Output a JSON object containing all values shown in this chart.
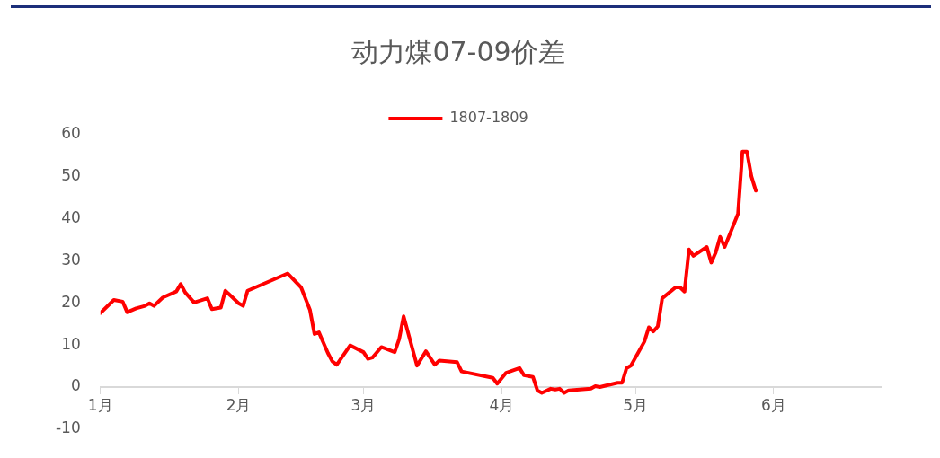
{
  "chart_data": {
    "type": "line",
    "title": "动力煤07-09价差",
    "legend": "top",
    "grid": false,
    "marker": "none",
    "line_style": "solid",
    "xlim": [
      "--01-01",
      "--06-25"
    ],
    "xticks": [
      {
        "value": "--01-01",
        "label": "1月"
      },
      {
        "value": "--02-01",
        "label": "2月"
      },
      {
        "value": "--03-01",
        "label": "3月"
      },
      {
        "value": "--04-01",
        "label": "4月"
      },
      {
        "value": "--05-01",
        "label": "5月"
      },
      {
        "value": "--06-01",
        "label": "6月"
      }
    ],
    "ylim": [
      -10,
      60
    ],
    "yticks": [
      -10,
      0,
      10,
      20,
      30,
      40,
      50,
      60
    ],
    "x": [
      "--01-01",
      "--01-04",
      "--01-06",
      "--01-07",
      "--01-09",
      "--01-11",
      "--01-12",
      "--01-13",
      "--01-15",
      "--01-18",
      "--01-19",
      "--01-20",
      "--01-22",
      "--01-25",
      "--01-26",
      "--01-28",
      "--01-29",
      "--02-01",
      "--02-02",
      "--02-03",
      "--02-12",
      "--02-15",
      "--02-17",
      "--02-18",
      "--02-19",
      "--02-21",
      "--02-22",
      "--02-23",
      "--02-26",
      "--03-01",
      "--03-02",
      "--03-03",
      "--03-05",
      "--03-08",
      "--03-09",
      "--03-10",
      "--03-13",
      "--03-15",
      "--03-17",
      "--03-18",
      "--03-22",
      "--03-23",
      "--03-30",
      "--03-31",
      "--04-02",
      "--04-05",
      "--04-06",
      "--04-08",
      "--04-09",
      "--04-10",
      "--04-12",
      "--04-13",
      "--04-14",
      "--04-15",
      "--04-16",
      "--04-21",
      "--04-22",
      "--04-23",
      "--04-27",
      "--04-28",
      "--04-29",
      "--04-30",
      "--05-03",
      "--05-04",
      "--05-05",
      "--05-06",
      "--05-07",
      "--05-10",
      "--05-11",
      "--05-12",
      "--05-13",
      "--05-14",
      "--05-17",
      "--05-18",
      "--05-19",
      "--05-20",
      "--05-21",
      "--05-24",
      "--05-25",
      "--05-26",
      "--05-27",
      "--05-28"
    ],
    "series": [
      {
        "name": "1807-1809",
        "color": "#ff0000",
        "values": [
          17.6,
          20.7,
          20.3,
          17.8,
          18.7,
          19.3,
          19.9,
          19.3,
          21.3,
          22.7,
          24.5,
          22.5,
          20.1,
          21.1,
          18.5,
          18.9,
          22.9,
          19.9,
          19.3,
          22.9,
          27,
          23.7,
          18.3,
          12.6,
          13,
          8.1,
          6.1,
          5.3,
          9.9,
          8.3,
          6.7,
          7,
          9.5,
          8.3,
          11.4,
          16.8,
          5.1,
          8.5,
          5.3,
          6.3,
          5.9,
          3.7,
          2.2,
          0.8,
          3.4,
          4.5,
          2.8,
          2.4,
          -0.8,
          -1.4,
          -0.4,
          -0.6,
          -0.4,
          -1.4,
          -0.8,
          -0.4,
          0.2,
          0,
          1,
          1,
          4.5,
          5.1,
          10.8,
          14.2,
          13.2,
          14.4,
          21.1,
          23.7,
          23.7,
          22.7,
          32.7,
          31.2,
          33.3,
          29.6,
          32,
          35.7,
          33.3,
          41.2,
          56,
          56,
          50.1,
          46.7
        ]
      }
    ]
  }
}
